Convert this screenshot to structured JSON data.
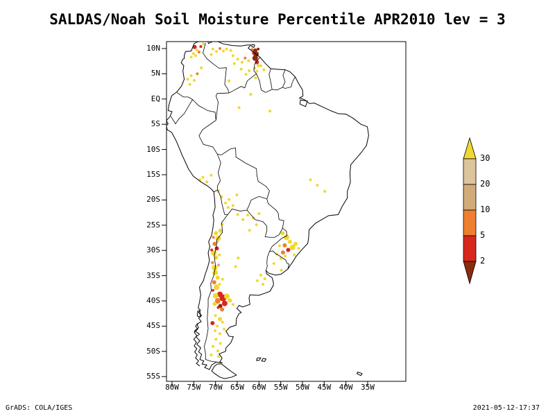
{
  "title": "SALDAS/Noah Soil Moisture Percentile APR2010 lev = 3",
  "footer": {
    "left": "GrADS: COLA/IGES",
    "right": "2021-05-12-17:37"
  },
  "chart_data": {
    "type": "heatmap",
    "region": "South America",
    "variable": "Soil Moisture Percentile",
    "time": "APR2010",
    "level": "3",
    "lat_ticks": [
      "10N",
      "5N",
      "EQ",
      "5S",
      "10S",
      "15S",
      "20S",
      "25S",
      "30S",
      "35S",
      "40S",
      "45S",
      "50S",
      "55S"
    ],
    "lon_ticks": [
      "80W",
      "75W",
      "70W",
      "65W",
      "60W",
      "55W",
      "50W",
      "45W",
      "40W",
      "35W"
    ],
    "colorbar": {
      "levels": [
        "30",
        "20",
        "10",
        "5",
        "2"
      ],
      "colors": [
        "#f0d830",
        "#dcc49c",
        "#d2ab7a",
        "#ee7f2f",
        "#d8281e",
        "#8a2b0f"
      ]
    },
    "points": [
      [
        -74.8,
        10.3,
        4,
        3
      ],
      [
        -74.3,
        9.7,
        0,
        2
      ],
      [
        -75.1,
        9.0,
        0,
        2
      ],
      [
        -73.8,
        9.3,
        3,
        2
      ],
      [
        -74.6,
        8.6,
        0,
        2
      ],
      [
        -73.4,
        10.4,
        4,
        2
      ],
      [
        -72.8,
        10.9,
        0,
        2
      ],
      [
        -75.6,
        8.3,
        0,
        2
      ],
      [
        -70.6,
        9.9,
        0,
        2
      ],
      [
        -69.8,
        9.4,
        0,
        2
      ],
      [
        -69.0,
        10.0,
        3,
        2
      ],
      [
        -68.2,
        9.5,
        0,
        2
      ],
      [
        -67.5,
        9.9,
        0,
        2
      ],
      [
        -71.0,
        8.8,
        0,
        2
      ],
      [
        -66.5,
        9.6,
        0,
        2
      ],
      [
        -60.9,
        9.6,
        5,
        3
      ],
      [
        -60.7,
        8.9,
        5,
        4
      ],
      [
        -60.9,
        8.1,
        5,
        4
      ],
      [
        -60.5,
        7.3,
        4,
        3
      ],
      [
        -61.3,
        9.1,
        4,
        2
      ],
      [
        -60.2,
        9.9,
        5,
        2
      ],
      [
        -61.6,
        9.8,
        3,
        2
      ],
      [
        -60.2,
        6.6,
        0,
        2
      ],
      [
        -61.0,
        6.1,
        0,
        2
      ],
      [
        -60.5,
        5.5,
        0,
        2
      ],
      [
        -64.9,
        7.9,
        0,
        2
      ],
      [
        -63.9,
        7.3,
        0,
        2
      ],
      [
        -65.7,
        7.0,
        0,
        2
      ],
      [
        -63.2,
        8.1,
        3,
        2
      ],
      [
        -62.4,
        7.6,
        0,
        2
      ],
      [
        -64.1,
        5.9,
        0,
        2
      ],
      [
        -63.0,
        4.9,
        0,
        2
      ],
      [
        -62.3,
        5.6,
        0,
        2
      ],
      [
        -66.0,
        8.6,
        0,
        2
      ],
      [
        -75.6,
        4.6,
        0,
        2
      ],
      [
        -74.9,
        3.7,
        0,
        2
      ],
      [
        -75.9,
        2.9,
        0,
        2
      ],
      [
        -74.2,
        5.0,
        3,
        2
      ],
      [
        -76.4,
        3.9,
        0,
        2
      ],
      [
        -73.3,
        6.2,
        0,
        2
      ],
      [
        -59.6,
        6.6,
        0,
        2
      ],
      [
        -58.9,
        5.8,
        0,
        2
      ],
      [
        -60.8,
        4.2,
        0,
        2
      ],
      [
        -64.6,
        -1.7,
        0,
        2
      ],
      [
        -57.5,
        -2.4,
        0,
        2
      ],
      [
        -61.9,
        0.9,
        0,
        2
      ],
      [
        -66.9,
        3.6,
        0,
        2
      ],
      [
        -48.2,
        -16.0,
        0,
        2
      ],
      [
        -46.6,
        -17.1,
        0,
        2
      ],
      [
        -44.9,
        -18.3,
        0,
        2
      ],
      [
        -72.9,
        -15.5,
        0,
        2
      ],
      [
        -73.6,
        -16.0,
        0,
        2
      ],
      [
        -72.0,
        -16.4,
        0,
        2
      ],
      [
        -71.0,
        -15.1,
        0,
        2
      ],
      [
        -69.4,
        -18.3,
        0,
        2
      ],
      [
        -68.6,
        -19.4,
        0,
        2
      ],
      [
        -67.7,
        -20.6,
        0,
        2
      ],
      [
        -66.9,
        -19.9,
        0,
        2
      ],
      [
        -67.1,
        -21.5,
        0,
        2
      ],
      [
        -66.0,
        -21.1,
        0,
        2
      ],
      [
        -65.1,
        -19.0,
        0,
        2
      ],
      [
        -64.9,
        -22.9,
        0,
        2
      ],
      [
        -63.7,
        -23.9,
        0,
        2
      ],
      [
        -62.6,
        -23.0,
        0,
        2
      ],
      [
        -61.3,
        -23.6,
        0,
        2
      ],
      [
        -60.0,
        -22.7,
        0,
        2
      ],
      [
        -62.2,
        -26.0,
        0,
        2
      ],
      [
        -60.6,
        -24.9,
        0,
        2
      ],
      [
        -68.5,
        -24.8,
        0,
        2
      ],
      [
        -68.9,
        -26.1,
        0,
        3
      ],
      [
        -69.9,
        -26.6,
        0,
        3
      ],
      [
        -69.4,
        -27.6,
        0,
        4
      ],
      [
        -70.2,
        -28.7,
        3,
        3
      ],
      [
        -69.7,
        -29.6,
        4,
        3
      ],
      [
        -70.4,
        -30.5,
        0,
        4
      ],
      [
        -69.9,
        -31.4,
        0,
        3
      ],
      [
        -70.7,
        -32.4,
        3,
        2
      ],
      [
        -70.2,
        -33.4,
        0,
        4
      ],
      [
        -69.6,
        -28.3,
        1,
        2
      ],
      [
        -70.9,
        -29.9,
        4,
        2
      ],
      [
        -70.5,
        -27.4,
        3,
        2
      ],
      [
        -69.1,
        -30.9,
        0,
        2
      ],
      [
        -70.1,
        -34.4,
        0,
        4
      ],
      [
        -69.5,
        -35.4,
        0,
        3
      ],
      [
        -70.3,
        -36.3,
        3,
        3
      ],
      [
        -69.8,
        -37.3,
        0,
        4
      ],
      [
        -70.6,
        -37.9,
        4,
        2
      ],
      [
        -69.1,
        -36.7,
        0,
        2
      ],
      [
        -68.4,
        -35.7,
        0,
        2
      ],
      [
        -69.3,
        -32.9,
        2,
        2
      ],
      [
        -69.0,
        -38.7,
        4,
        4
      ],
      [
        -68.3,
        -39.4,
        4,
        5
      ],
      [
        -69.5,
        -40.0,
        3,
        4
      ],
      [
        -67.9,
        -40.5,
        4,
        4
      ],
      [
        -68.9,
        -41.0,
        5,
        3
      ],
      [
        -67.4,
        -39.1,
        0,
        4
      ],
      [
        -66.7,
        -39.9,
        0,
        3
      ],
      [
        -70.0,
        -39.0,
        0,
        4
      ],
      [
        -70.2,
        -40.6,
        0,
        3
      ],
      [
        -68.5,
        -41.7,
        3,
        3
      ],
      [
        -69.4,
        -41.3,
        4,
        2
      ],
      [
        -66.0,
        -40.7,
        0,
        2
      ],
      [
        -70.0,
        -42.9,
        0,
        2
      ],
      [
        -69.0,
        -43.6,
        0,
        3
      ],
      [
        -70.7,
        -44.4,
        4,
        3
      ],
      [
        -69.6,
        -45.0,
        0,
        2
      ],
      [
        -68.4,
        -44.2,
        0,
        2
      ],
      [
        -70.1,
        -45.9,
        0,
        2
      ],
      [
        -69.0,
        -46.5,
        0,
        2
      ],
      [
        -68.0,
        -45.6,
        0,
        2
      ],
      [
        -69.9,
        -47.6,
        0,
        2
      ],
      [
        -68.9,
        -48.4,
        0,
        2
      ],
      [
        -70.6,
        -49.0,
        0,
        2
      ],
      [
        -69.5,
        -49.9,
        0,
        2
      ],
      [
        -71.0,
        -50.7,
        0,
        2
      ],
      [
        -69.3,
        -51.0,
        0,
        2
      ],
      [
        -54.6,
        -26.6,
        0,
        3
      ],
      [
        -53.7,
        -27.4,
        0,
        4
      ],
      [
        -52.9,
        -28.3,
        0,
        3
      ],
      [
        -54.1,
        -29.0,
        3,
        3
      ],
      [
        -53.3,
        -29.9,
        4,
        3
      ],
      [
        -54.5,
        -30.4,
        3,
        3
      ],
      [
        -52.3,
        -29.4,
        0,
        4
      ],
      [
        -51.6,
        -28.7,
        0,
        3
      ],
      [
        -50.9,
        -29.6,
        0,
        2
      ],
      [
        -55.3,
        -29.1,
        0,
        2
      ],
      [
        -55.9,
        -30.7,
        0,
        2
      ],
      [
        -55.0,
        -31.6,
        0,
        2
      ],
      [
        -54.0,
        -31.1,
        0,
        2
      ],
      [
        -56.6,
        -32.6,
        0,
        2
      ],
      [
        -54.9,
        -33.9,
        0,
        2
      ],
      [
        -51.9,
        -30.9,
        0,
        2
      ],
      [
        -59.6,
        -34.9,
        0,
        2
      ],
      [
        -58.7,
        -35.6,
        0,
        2
      ],
      [
        -60.4,
        -36.0,
        0,
        2
      ],
      [
        -59.1,
        -36.7,
        0,
        2
      ],
      [
        -64.8,
        -31.5,
        0,
        2
      ],
      [
        -65.4,
        -33.2,
        0,
        2
      ]
    ]
  }
}
